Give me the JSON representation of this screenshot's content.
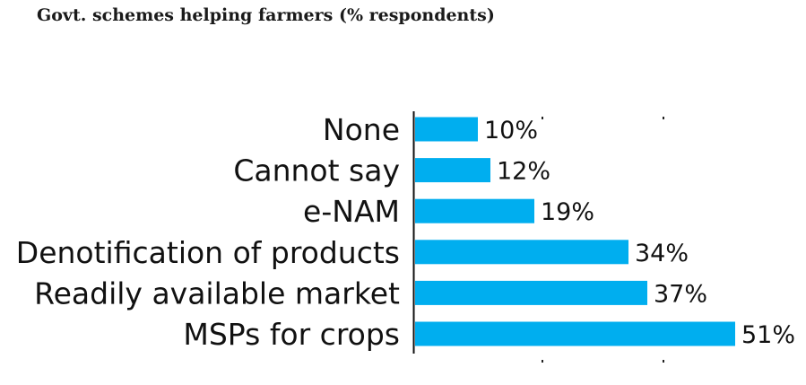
{
  "title": "Govt. schemes helping farmers (% respondents)",
  "chart_data": {
    "type": "bar",
    "orientation": "horizontal",
    "title": "Govt. schemes helping farmers (% respondents)",
    "categories": [
      "None",
      "Cannot say",
      "e-NAM",
      "Denotification of products",
      "Readily available market",
      "MSPs for crops"
    ],
    "values": [
      10,
      12,
      19,
      34,
      37,
      51
    ],
    "value_labels": [
      "10%",
      "12%",
      "19%",
      "34%",
      "37%",
      "51%"
    ],
    "unit": "%",
    "xlim": [
      0,
      51
    ],
    "grid": false,
    "legend": "none",
    "bar_color": "#00aeef"
  }
}
